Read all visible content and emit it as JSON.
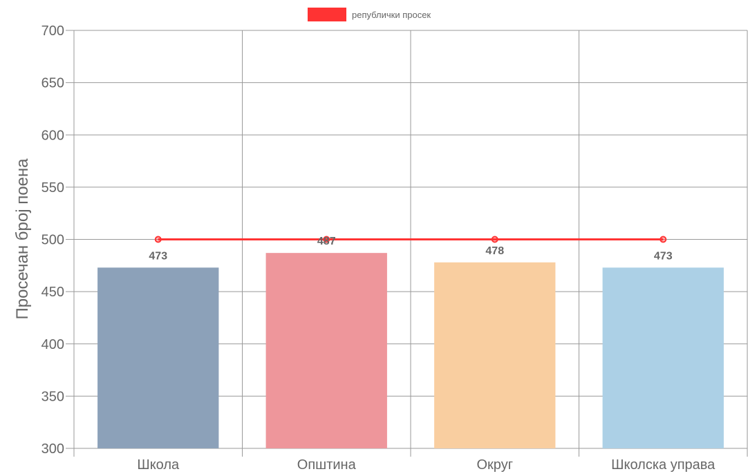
{
  "chart_data": {
    "type": "bar",
    "categories": [
      "Школа",
      "Општина",
      "Округ",
      "Школска управа"
    ],
    "series": [
      {
        "values": [
          473,
          487,
          478,
          473
        ],
        "colors": [
          "#8ca1b9",
          "#ee969b",
          "#f9cea0",
          "#acd0e6"
        ]
      },
      {
        "name": "републички просек",
        "type": "line",
        "values": [
          500,
          500,
          500,
          500
        ],
        "color": "#ff3333"
      }
    ],
    "ylabel": "Просечан број поена",
    "xlabel": "",
    "ylim": [
      300,
      700
    ],
    "yticks": [
      300,
      350,
      400,
      450,
      500,
      550,
      600,
      650,
      700
    ],
    "grid": true,
    "legend_position": "top-center",
    "data_labels": [
      "473",
      "487",
      "478",
      "473"
    ]
  }
}
